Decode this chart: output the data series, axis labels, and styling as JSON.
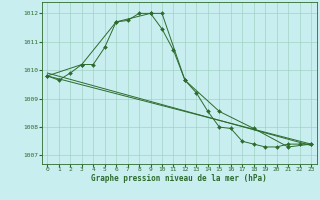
{
  "title": "Graphe pression niveau de la mer (hPa)",
  "background_color": "#c8eef0",
  "grid_color": "#99ccbb",
  "line_color": "#2d6b2d",
  "xlim": [
    -0.5,
    23.5
  ],
  "ylim": [
    1006.7,
    1012.4
  ],
  "yticks": [
    1007,
    1008,
    1009,
    1010,
    1011,
    1012
  ],
  "xticks": [
    0,
    1,
    2,
    3,
    4,
    5,
    6,
    7,
    8,
    9,
    10,
    11,
    12,
    13,
    14,
    15,
    16,
    17,
    18,
    19,
    20,
    21,
    22,
    23
  ],
  "series1_x": [
    0,
    1,
    2,
    3,
    4,
    5,
    6,
    7,
    8,
    9,
    10,
    11,
    12,
    13,
    14,
    15,
    16,
    17,
    18,
    19,
    20,
    21,
    22,
    23
  ],
  "series1_y": [
    1009.8,
    1009.65,
    1009.9,
    1010.2,
    1010.2,
    1010.8,
    1011.7,
    1011.75,
    1012.0,
    1012.0,
    1011.45,
    1010.7,
    1009.65,
    1009.2,
    1008.55,
    1008.0,
    1007.95,
    1007.5,
    1007.4,
    1007.3,
    1007.3,
    1007.4,
    1007.4,
    1007.4
  ],
  "series2_x": [
    0,
    3,
    6,
    9,
    10,
    12,
    15,
    18,
    21,
    23
  ],
  "series2_y": [
    1009.8,
    1010.2,
    1011.7,
    1012.0,
    1012.0,
    1009.65,
    1008.55,
    1007.95,
    1007.3,
    1007.4
  ],
  "series3_x": [
    0,
    23
  ],
  "series3_y": [
    1009.8,
    1007.4
  ],
  "series4_x": [
    0,
    23
  ],
  "series4_y": [
    1009.9,
    1007.35
  ],
  "tick_fontsize": 4.5,
  "xlabel_fontsize": 5.5,
  "lw": 0.7,
  "ms": 2.0
}
